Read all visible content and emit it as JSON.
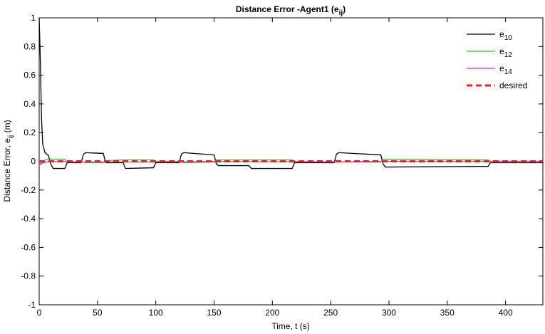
{
  "chart_data": {
    "type": "line",
    "title": "Distance Error -Agent1 (e",
    "title_sub": "ij",
    "title_end": ")",
    "xlabel": "Time, t (s)",
    "ylabel": "Distance Error, e",
    "ylabel_sub": "ij",
    "ylabel_end": " (m)",
    "xlim": [
      0,
      432
    ],
    "ylim": [
      -1,
      1
    ],
    "xticks": [
      0,
      50,
      100,
      150,
      200,
      250,
      300,
      350,
      400
    ],
    "yticks": [
      -1,
      -0.8,
      -0.6,
      -0.4,
      -0.2,
      0,
      0.2,
      0.4,
      0.6,
      0.8,
      1
    ],
    "legend": "upper-right",
    "series": [
      {
        "name": "e",
        "sub": "10",
        "color": "#000000",
        "dash": false,
        "x": [
          0,
          1,
          2,
          3,
          5,
          8,
          10,
          12,
          22,
          24,
          36,
          38,
          40,
          55,
          57,
          72,
          74,
          98,
          100,
          120,
          122,
          124,
          150,
          152,
          154,
          180,
          182,
          217,
          219,
          253,
          255,
          257,
          293,
          295,
          297,
          385,
          387,
          432
        ],
        "values": [
          1,
          0.7,
          0.3,
          0.12,
          0.06,
          0.04,
          -0.02,
          -0.05,
          -0.05,
          -0.01,
          -0.01,
          0.05,
          0.06,
          0.055,
          -0.01,
          -0.01,
          -0.05,
          -0.045,
          -0.01,
          -0.01,
          0.05,
          0.06,
          0.045,
          -0.02,
          -0.03,
          -0.03,
          -0.05,
          -0.05,
          -0.01,
          -0.01,
          0.05,
          0.06,
          0.045,
          -0.02,
          -0.04,
          -0.035,
          -0.01,
          -0.01
        ]
      },
      {
        "name": "e",
        "sub": "12",
        "color": "#22cc22",
        "dash": false,
        "x": [
          0,
          5,
          10,
          22,
          24,
          38,
          40,
          55,
          57,
          72,
          98,
          100,
          122,
          124,
          150,
          152,
          217,
          219,
          255,
          293,
          295,
          385,
          387,
          432
        ],
        "values": [
          -0.02,
          0.01,
          0.015,
          0.015,
          -0.005,
          -0.005,
          -0.01,
          -0.01,
          0.005,
          0.01,
          0.01,
          0,
          0,
          -0.01,
          -0.005,
          0.01,
          0.01,
          0,
          -0.005,
          -0.005,
          0.015,
          0.01,
          0,
          0
        ]
      },
      {
        "name": "e",
        "sub": "14",
        "color": "#dd22dd",
        "dash": false,
        "x": [
          0,
          3,
          10,
          40,
          55,
          124,
          150,
          257,
          293,
          432
        ],
        "values": [
          -0.03,
          -0.01,
          0,
          -0.005,
          -0.005,
          -0.005,
          0,
          -0.005,
          0,
          0
        ]
      },
      {
        "name": "desired",
        "color": "#ee2222",
        "dash": true,
        "x": [
          0,
          432
        ],
        "values": [
          0,
          0
        ]
      }
    ]
  }
}
